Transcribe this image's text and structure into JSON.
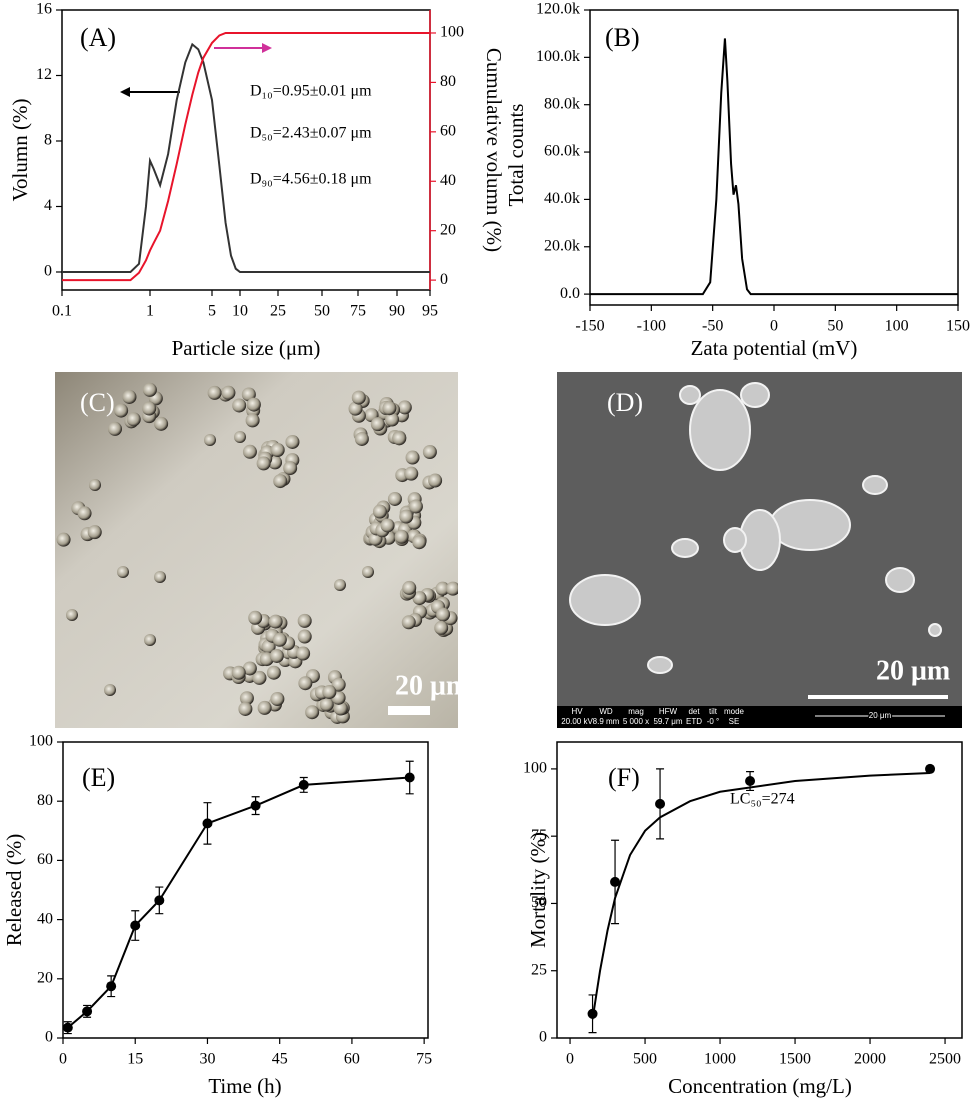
{
  "chart_data": [
    {
      "type": "line",
      "label": "(A)",
      "xlabel": "Particle size (μm)",
      "ylabel": "Volumn (%)",
      "y2label": "Cumulative volumn (%)",
      "x": [
        0.1,
        0.6,
        0.75,
        0.9,
        1.0,
        1.1,
        1.3,
        1.6,
        2.0,
        2.5,
        3.0,
        3.5,
        4.0,
        5,
        6,
        7,
        8,
        9,
        10,
        95
      ],
      "series": [
        {
          "color": "#333333",
          "values": [
            0,
            0,
            0.5,
            4,
            6.8,
            6.3,
            5.3,
            7.2,
            10.5,
            12.8,
            13.9,
            13.6,
            12.8,
            10.5,
            6.5,
            3,
            1,
            0.2,
            0,
            0
          ]
        },
        {
          "color": "#e8142b",
          "axis": "y2",
          "values": [
            0,
            0,
            3,
            8,
            12,
            15,
            20,
            32,
            47,
            63,
            75,
            84,
            90,
            96,
            99,
            100,
            100,
            100,
            100,
            100
          ]
        }
      ],
      "xlim": [
        0.1,
        95
      ],
      "xticks": [
        0.1,
        1,
        5,
        10,
        25,
        50,
        75,
        90,
        95
      ],
      "ylim": [
        -1.1,
        16
      ],
      "yticks": [
        0,
        4,
        8,
        12,
        16
      ],
      "y2lim": [
        -4,
        109.3
      ],
      "y2ticks": [
        0,
        20,
        40,
        60,
        80,
        100
      ],
      "y2color": "#e8142b",
      "annotations": [
        "D₁₀=0.95±0.01 μm",
        "D₅₀=2.43±0.07 μm",
        "D₉₀=4.56±0.18 μm"
      ]
    },
    {
      "type": "line",
      "label": "(B)",
      "xlabel": "Zata potential (mV)",
      "ylabel": "Total counts",
      "x": [
        -150,
        -58,
        -52,
        -47,
        -43,
        -40,
        -38,
        -35,
        -33,
        -31,
        -29,
        -26,
        -22,
        -19,
        150
      ],
      "series": [
        {
          "color": "#000000",
          "values": [
            0,
            0,
            5000,
            40000,
            85000,
            108000,
            90000,
            55000,
            42000,
            46000,
            38000,
            15000,
            2000,
            0,
            0
          ]
        }
      ],
      "xlim": [
        -150,
        150
      ],
      "xticks": [
        -150,
        -100,
        -50,
        0,
        50,
        100,
        150
      ],
      "ylim": [
        -4600,
        120000
      ],
      "yticks": [
        {
          "value": 0,
          "label": "0.0"
        },
        {
          "value": 20000,
          "label": "20.0k"
        },
        {
          "value": 40000,
          "label": "40.0k"
        },
        {
          "value": 60000,
          "label": "60.0k"
        },
        {
          "value": 80000,
          "label": "80.0k"
        },
        {
          "value": 100000,
          "label": "100.0k"
        },
        {
          "value": 120000,
          "label": "120.0k"
        }
      ]
    },
    {
      "type": "image",
      "label": "(C)",
      "scale_label": "20 μm"
    },
    {
      "type": "image",
      "label": "(D)",
      "scale_label": "20 μm",
      "info_bar": {
        "headers": [
          "HV",
          "WD",
          "mag",
          "HFW",
          "det",
          "tilt",
          "mode"
        ],
        "values": [
          "20.00 kV",
          "8.9 mm",
          "5 000 x",
          "59.7 μm",
          "ETD",
          "-0 °",
          "SE"
        ],
        "scale": "20 μm"
      }
    },
    {
      "type": "line",
      "label": "(E)",
      "xlabel": "Time (h)",
      "ylabel": "Released (%)",
      "x": [
        1,
        5,
        10,
        15,
        20,
        30,
        40,
        50,
        72
      ],
      "series": [
        {
          "color": "#000000",
          "markers": true,
          "line": true,
          "values": [
            3.5,
            9,
            17.5,
            38,
            46.5,
            72.5,
            78.5,
            85.5,
            88
          ],
          "errors": [
            2,
            2,
            3.5,
            5,
            4.5,
            7,
            3,
            2.5,
            5.5
          ]
        }
      ],
      "xlim": [
        0,
        75.8
      ],
      "xticks": [
        0,
        15,
        30,
        45,
        60,
        75
      ],
      "ylim": [
        0,
        100
      ],
      "yticks": [
        0,
        20,
        40,
        60,
        80,
        100
      ]
    },
    {
      "type": "line",
      "label": "(F)",
      "xlabel": "Concentration (mg/L)",
      "ylabel": "Mortality (%)",
      "series": [
        {
          "color": "#000000",
          "markers": true,
          "line": false,
          "x": [
            150,
            300,
            600,
            1200,
            2400
          ],
          "values": [
            9,
            58,
            87,
            95.5,
            100
          ],
          "errors": [
            7,
            15.5,
            13,
            3.5,
            1
          ]
        },
        {
          "color": "#000000",
          "markers": false,
          "line": true,
          "x": [
            150,
            200,
            250,
            300,
            400,
            500,
            600,
            800,
            1000,
            1500,
            2000,
            2400
          ],
          "values": [
            7,
            25,
            40,
            52,
            68,
            77,
            82,
            88,
            91.5,
            95.5,
            97.5,
            98.5
          ]
        }
      ],
      "xlim": [
        -87,
        2613
      ],
      "xticks": [
        0,
        500,
        1000,
        1500,
        2000,
        2500
      ],
      "ylim": [
        0,
        110
      ],
      "yticks": [
        0,
        25,
        50,
        75,
        100
      ],
      "annotations": [
        "LC₅₀=274"
      ]
    }
  ]
}
